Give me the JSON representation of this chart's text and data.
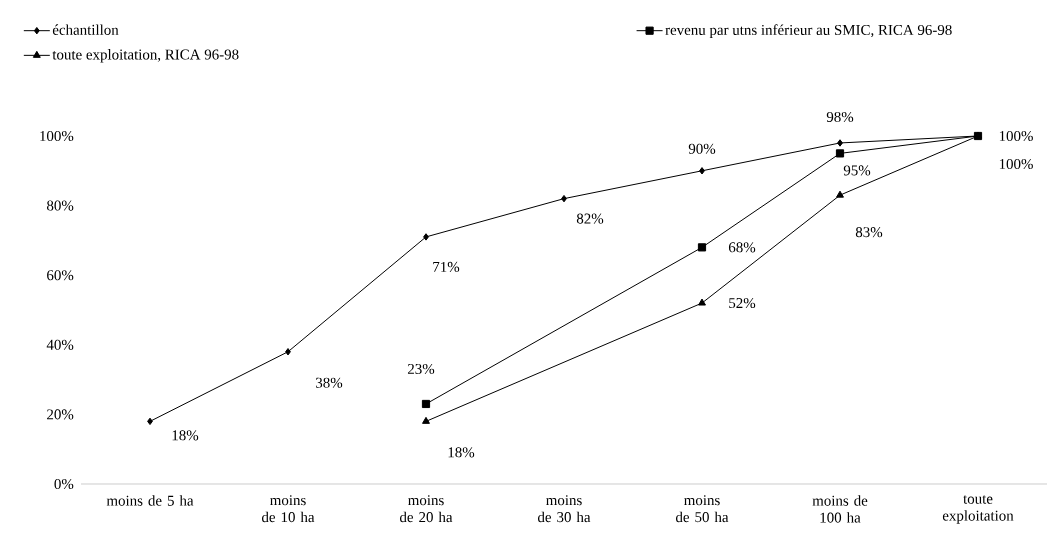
{
  "chart_data": {
    "type": "line",
    "categories": [
      "moins de 5 ha",
      "moins de 10 ha",
      "moins de 20 ha",
      "moins de 30 ha",
      "moins de 50 ha",
      "moins de 100 ha",
      "toute exploitation"
    ],
    "series": [
      {
        "name": "échantillon",
        "color": "#000000",
        "marker": "diamond",
        "values": [
          18,
          38,
          71,
          82,
          90,
          98,
          100
        ],
        "value_labels": [
          "18%",
          "38%",
          "71%",
          "82%",
          "90%",
          "98%",
          null
        ]
      },
      {
        "name": "revenu par utns inférieur au SMIC, RICA 96-98",
        "color": "#000000",
        "marker": "square",
        "values": [
          null,
          null,
          23,
          null,
          68,
          95,
          100
        ],
        "value_labels": [
          null,
          null,
          "23%",
          null,
          "68%",
          "95%",
          "100%"
        ]
      },
      {
        "name": "toute exploitation, RICA 96-98",
        "color": "#000000",
        "marker": "triangle",
        "values": [
          null,
          null,
          18,
          null,
          52,
          83,
          100
        ],
        "value_labels": [
          null,
          null,
          "18%",
          null,
          "52%",
          "83%",
          "100%"
        ]
      }
    ],
    "ylim": [
      0,
      100
    ],
    "yticks": [
      {
        "value": 0,
        "label": "0%"
      },
      {
        "value": 20,
        "label": "20%"
      },
      {
        "value": 40,
        "label": "40%"
      },
      {
        "value": 60,
        "label": "60%"
      },
      {
        "value": 80,
        "label": "80%"
      },
      {
        "value": 100,
        "label": "100%"
      }
    ],
    "legend": "top",
    "line_style": "solid"
  }
}
